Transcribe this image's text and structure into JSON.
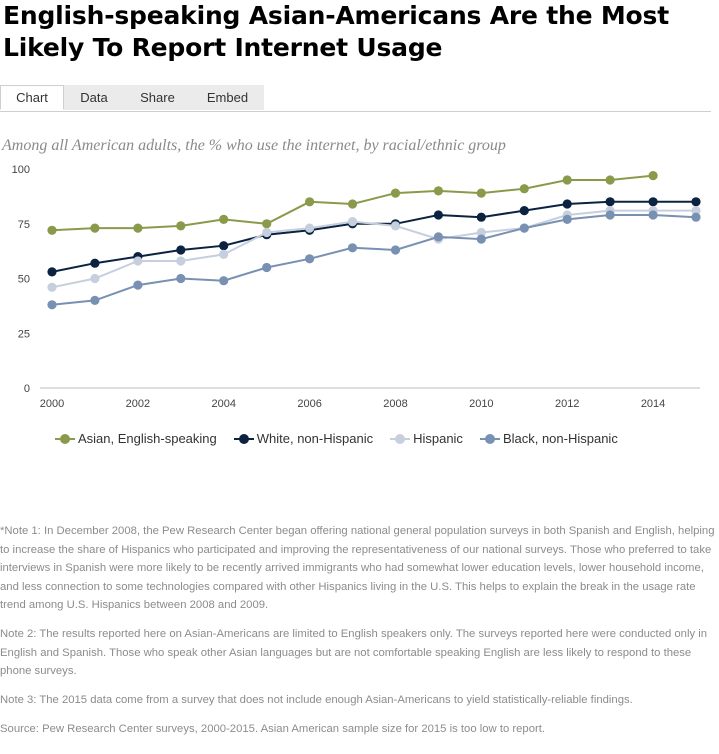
{
  "title": "English-speaking Asian-Americans Are the Most Likely To Report Internet Usage",
  "tabs": [
    {
      "label": "Chart",
      "active": true
    },
    {
      "label": "Data",
      "active": false
    },
    {
      "label": "Share",
      "active": false
    },
    {
      "label": "Embed",
      "active": false
    }
  ],
  "subtitle": "Among all American adults, the % who use the internet, by racial/ethnic group",
  "chart_data": {
    "type": "line",
    "x": [
      2000,
      2001,
      2002,
      2003,
      2004,
      2005,
      2006,
      2007,
      2008,
      2009,
      2010,
      2011,
      2012,
      2013,
      2014,
      2015
    ],
    "xticks": [
      2000,
      2002,
      2004,
      2006,
      2008,
      2010,
      2012,
      2014
    ],
    "yticks": [
      0,
      25,
      50,
      75,
      100
    ],
    "xlim": [
      2000,
      2015
    ],
    "ylim": [
      0,
      100
    ],
    "grid": false,
    "legend_position": "bottom",
    "series": [
      {
        "name": "Asian, English-speaking",
        "color": "#8a9a4b",
        "values": [
          72,
          73,
          73,
          74,
          77,
          75,
          85,
          84,
          89,
          90,
          89,
          91,
          95,
          95,
          97,
          null
        ]
      },
      {
        "name": "White, non-Hispanic",
        "color": "#0b2240",
        "values": [
          53,
          57,
          60,
          63,
          65,
          70,
          72,
          75,
          75,
          79,
          78,
          81,
          84,
          85,
          85,
          85
        ]
      },
      {
        "name": "Hispanic",
        "color": "#c6cfdd",
        "values": [
          46,
          50,
          58,
          58,
          61,
          71,
          73,
          76,
          74,
          68,
          71,
          73,
          79,
          81,
          81,
          81
        ]
      },
      {
        "name": "Black, non-Hispanic",
        "color": "#7891b3",
        "values": [
          38,
          40,
          47,
          50,
          49,
          55,
          59,
          64,
          63,
          69,
          68,
          73,
          77,
          79,
          79,
          78
        ]
      }
    ]
  },
  "notes": [
    "*Note 1: In December 2008, the Pew Research Center began offering national general population surveys in both Spanish and English, helping to increase the share of Hispanics who participated and improving the representativeness of our national surveys. Those who preferred to take interviews in Spanish were more likely to be recently arrived immigrants who had somewhat lower education levels, lower household income, and less connection to some technologies compared with other Hispanics living in the U.S. This helps to explain the break in the usage rate trend among U.S. Hispanics between 2008 and 2009.",
    "Note 2: The results reported here on Asian-Americans are limited to English speakers only. The surveys reported here were conducted only in English and Spanish. Those who speak other Asian languages but are not comfortable speaking English are less likely to respond to these phone surveys.",
    "Note 3: The 2015 data come from a survey that does not include enough Asian-Americans to yield statistically-reliable findings.",
    "Source: Pew Research Center surveys, 2000-2015. Asian American sample size for 2015 is too low to report."
  ]
}
